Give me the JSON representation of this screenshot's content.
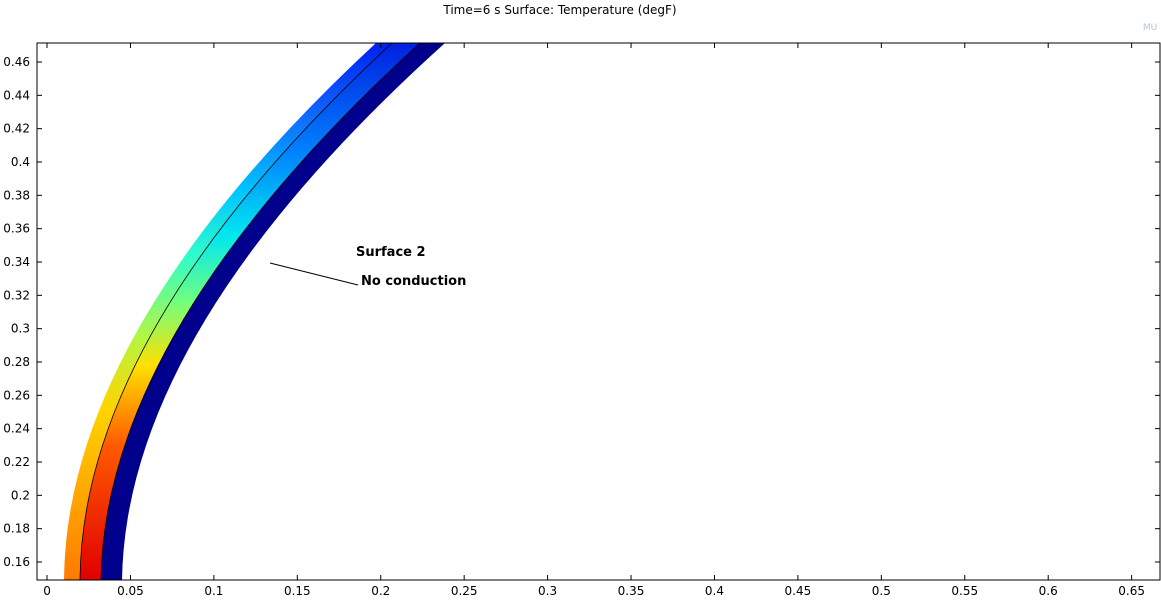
{
  "chart_data": {
    "type": "surface",
    "title": "Time=6 s   Surface: Temperature (degF)",
    "watermark": "MU",
    "annotations": [
      "Surface 2",
      "No conduction"
    ],
    "xlim": [
      -0.006,
      0.667
    ],
    "ylim": [
      0.1492,
      0.4714
    ],
    "xticks": [
      0,
      0.05,
      0.1,
      0.15,
      0.2,
      0.25,
      0.3,
      0.35,
      0.4,
      0.45,
      0.5,
      0.55,
      0.6,
      0.65
    ],
    "yticks": [
      0.16,
      0.18,
      0.2,
      0.22,
      0.24,
      0.26,
      0.28,
      0.3,
      0.32,
      0.34,
      0.36,
      0.38,
      0.4,
      0.42,
      0.44,
      0.46
    ]
  }
}
